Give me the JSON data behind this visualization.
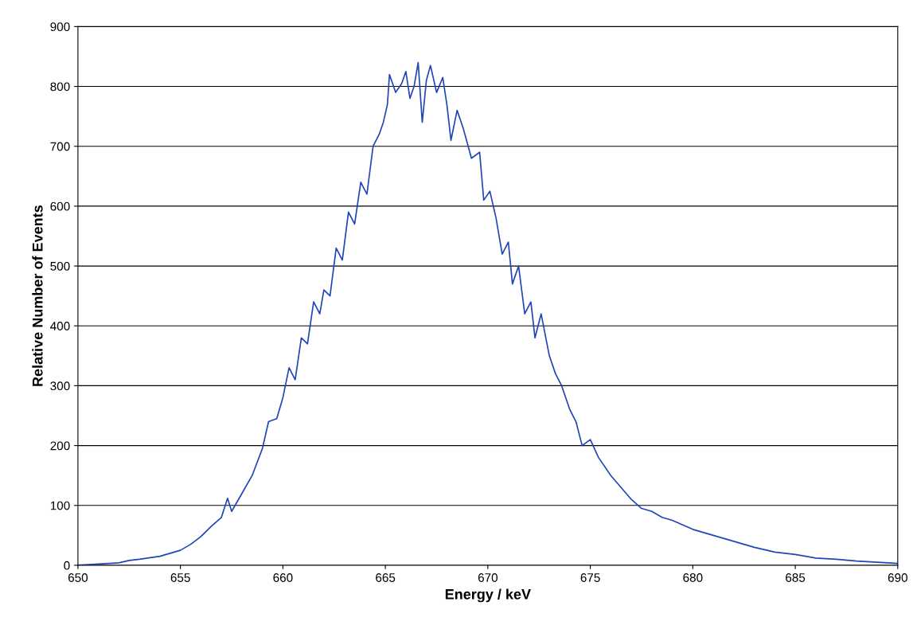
{
  "chart_data": {
    "type": "line",
    "xlabel": "Energy / keV",
    "ylabel": "Relative Number of Events",
    "xlim": [
      650,
      690
    ],
    "xticks": [
      650,
      655,
      660,
      665,
      670,
      675,
      680,
      685,
      690
    ],
    "ylim": [
      0,
      900
    ],
    "yticks": [
      0,
      100,
      200,
      300,
      400,
      500,
      600,
      700,
      800,
      900
    ],
    "grid": "y",
    "legend": false,
    "marker": "none",
    "line_style": "solid",
    "series": [
      {
        "color": "#1f45b8",
        "x": [
          650,
          651,
          652,
          652.5,
          653,
          654,
          654.5,
          655,
          655.5,
          656,
          656.5,
          657,
          657.3,
          657.5,
          658,
          658.5,
          659,
          659.3,
          659.7,
          660,
          660.3,
          660.6,
          660.9,
          661.2,
          661.5,
          661.8,
          662,
          662.3,
          662.6,
          662.9,
          663.2,
          663.5,
          663.8,
          664.1,
          664.4,
          664.7,
          664.9,
          665.1,
          665.2,
          665.5,
          665.8,
          666.0,
          666.2,
          666.4,
          666.6,
          666.8,
          667.0,
          667.2,
          667.5,
          667.8,
          668.0,
          668.2,
          668.5,
          668.8,
          669.2,
          669.6,
          669.8,
          670.1,
          670.4,
          670.7,
          671.0,
          671.2,
          671.5,
          671.8,
          672.1,
          672.3,
          672.6,
          673.0,
          673.3,
          673.6,
          674,
          674.3,
          674.6,
          675,
          675.4,
          676,
          676.5,
          677,
          677.5,
          678,
          678.5,
          679,
          680,
          681,
          682,
          683,
          684,
          685,
          686,
          687,
          688,
          689,
          690
        ],
        "values": [
          0,
          2,
          4,
          8,
          10,
          15,
          20,
          25,
          35,
          48,
          65,
          80,
          112,
          90,
          120,
          150,
          195,
          240,
          245,
          280,
          330,
          310,
          380,
          370,
          440,
          420,
          460,
          450,
          530,
          510,
          590,
          570,
          640,
          620,
          700,
          720,
          740,
          770,
          820,
          790,
          805,
          825,
          780,
          800,
          840,
          740,
          810,
          835,
          790,
          815,
          770,
          710,
          760,
          730,
          680,
          690,
          610,
          625,
          580,
          520,
          540,
          470,
          500,
          420,
          440,
          380,
          420,
          350,
          320,
          300,
          260,
          240,
          200,
          210,
          180,
          150,
          130,
          110,
          95,
          90,
          80,
          75,
          60,
          50,
          40,
          30,
          22,
          18,
          12,
          10,
          7,
          5,
          3
        ]
      }
    ]
  }
}
